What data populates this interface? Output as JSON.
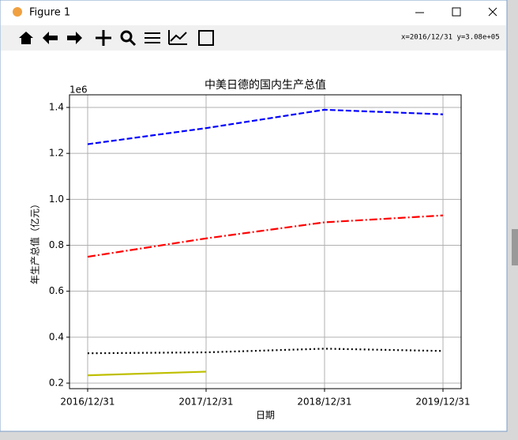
{
  "window": {
    "title": "Figure 1",
    "status": "x=2016/12/31 y=3.08e+05"
  },
  "chart_data": {
    "type": "line",
    "title": "中美日德的国内生产总值",
    "xlabel": "日期",
    "ylabel": "年生产总值（亿元）",
    "offset_label": "1e6",
    "categories": [
      "2016/12/31",
      "2017/12/31",
      "2018/12/31",
      "2019/12/31"
    ],
    "series": [
      {
        "color": "#0000ff",
        "linestyle": "dashed",
        "values": [
          1240000,
          1310000,
          1390000,
          1370000
        ]
      },
      {
        "color": "#ff0000",
        "linestyle": "dashdot",
        "values": [
          750000,
          830000,
          900000,
          930000
        ]
      },
      {
        "color": "#000000",
        "linestyle": "dotted",
        "values": [
          330000,
          334000,
          350000,
          340000
        ]
      },
      {
        "color": "#bfbf00",
        "linestyle": "solid",
        "values": [
          234000,
          250000,
          null,
          null
        ]
      }
    ],
    "ylim": [
      176000,
      1455000
    ],
    "yticks": [
      {
        "value": 200000,
        "label": "0.2"
      },
      {
        "value": 400000,
        "label": "0.4"
      },
      {
        "value": 600000,
        "label": "0.6"
      },
      {
        "value": 800000,
        "label": "0.8"
      },
      {
        "value": 1000000,
        "label": "1.0"
      },
      {
        "value": 1200000,
        "label": "1.2"
      },
      {
        "value": 1400000,
        "label": "1.4"
      }
    ],
    "grid": true
  }
}
